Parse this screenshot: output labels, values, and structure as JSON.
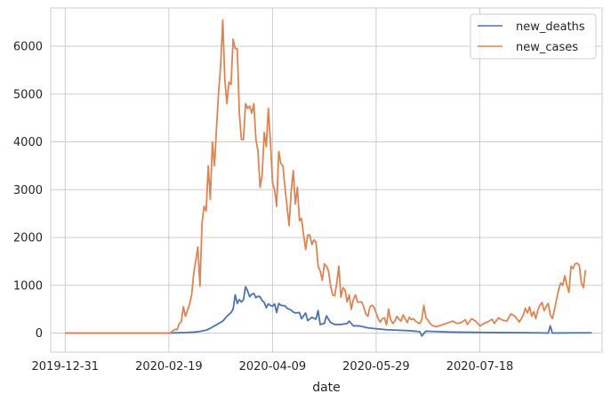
{
  "chart_data": {
    "type": "line",
    "xlabel": "date",
    "ylabel": "",
    "x_tick_labels": [
      "2019-12-31",
      "2020-02-19",
      "2020-04-09",
      "2020-05-29",
      "2020-07-18"
    ],
    "y_tick_labels": [
      "0",
      "1000",
      "2000",
      "3000",
      "4000",
      "5000",
      "6000"
    ],
    "xlim": [
      "2019-12-24",
      "2020-09-15"
    ],
    "ylim": [
      -400,
      6800
    ],
    "grid": true,
    "legend_position": "top-right",
    "colors": {
      "new_deaths": "#4c72b0",
      "new_cases": "#dd8452"
    },
    "series": [
      {
        "name": "new_deaths",
        "points": [
          [
            "2019-12-31",
            0
          ],
          [
            "2020-02-19",
            0
          ],
          [
            "2020-02-27",
            10
          ],
          [
            "2020-03-02",
            20
          ],
          [
            "2020-03-05",
            35
          ],
          [
            "2020-03-08",
            60
          ],
          [
            "2020-03-10",
            100
          ],
          [
            "2020-03-12",
            150
          ],
          [
            "2020-03-14",
            200
          ],
          [
            "2020-03-16",
            250
          ],
          [
            "2020-03-18",
            350
          ],
          [
            "2020-03-20",
            430
          ],
          [
            "2020-03-21",
            500
          ],
          [
            "2020-03-22",
            800
          ],
          [
            "2020-03-23",
            620
          ],
          [
            "2020-03-24",
            700
          ],
          [
            "2020-03-25",
            650
          ],
          [
            "2020-03-26",
            700
          ],
          [
            "2020-03-27",
            970
          ],
          [
            "2020-03-28",
            880
          ],
          [
            "2020-03-29",
            760
          ],
          [
            "2020-03-30",
            810
          ],
          [
            "2020-03-31",
            830
          ],
          [
            "2020-04-01",
            740
          ],
          [
            "2020-04-02",
            770
          ],
          [
            "2020-04-03",
            760
          ],
          [
            "2020-04-04",
            680
          ],
          [
            "2020-04-05",
            640
          ],
          [
            "2020-04-06",
            530
          ],
          [
            "2020-04-07",
            610
          ],
          [
            "2020-04-08",
            580
          ],
          [
            "2020-04-09",
            560
          ],
          [
            "2020-04-10",
            610
          ],
          [
            "2020-04-11",
            430
          ],
          [
            "2020-04-12",
            620
          ],
          [
            "2020-04-13",
            580
          ],
          [
            "2020-04-15",
            570
          ],
          [
            "2020-04-16",
            520
          ],
          [
            "2020-04-18",
            480
          ],
          [
            "2020-04-19",
            440
          ],
          [
            "2020-04-20",
            420
          ],
          [
            "2020-04-22",
            430
          ],
          [
            "2020-04-23",
            300
          ],
          [
            "2020-04-25",
            420
          ],
          [
            "2020-04-26",
            260
          ],
          [
            "2020-04-28",
            330
          ],
          [
            "2020-04-30",
            290
          ],
          [
            "2020-05-01",
            470
          ],
          [
            "2020-05-02",
            180
          ],
          [
            "2020-05-04",
            200
          ],
          [
            "2020-05-05",
            360
          ],
          [
            "2020-05-07",
            220
          ],
          [
            "2020-05-09",
            180
          ],
          [
            "2020-05-12",
            180
          ],
          [
            "2020-05-15",
            200
          ],
          [
            "2020-05-16",
            250
          ],
          [
            "2020-05-18",
            150
          ],
          [
            "2020-05-21",
            150
          ],
          [
            "2020-05-25",
            110
          ],
          [
            "2020-05-29",
            90
          ],
          [
            "2020-06-03",
            70
          ],
          [
            "2020-06-08",
            60
          ],
          [
            "2020-06-14",
            50
          ],
          [
            "2020-06-19",
            30
          ],
          [
            "2020-06-20",
            -60
          ],
          [
            "2020-06-22",
            40
          ],
          [
            "2020-06-28",
            30
          ],
          [
            "2020-07-05",
            20
          ],
          [
            "2020-07-15",
            15
          ],
          [
            "2020-07-25",
            10
          ],
          [
            "2020-08-05",
            8
          ],
          [
            "2020-08-15",
            5
          ],
          [
            "2020-08-20",
            0
          ],
          [
            "2020-08-21",
            150
          ],
          [
            "2020-08-22",
            0
          ],
          [
            "2020-09-01",
            5
          ],
          [
            "2020-09-10",
            5
          ]
        ]
      },
      {
        "name": "new_cases",
        "points": [
          [
            "2019-12-31",
            0
          ],
          [
            "2020-02-19",
            0
          ],
          [
            "2020-02-20",
            10
          ],
          [
            "2020-02-21",
            50
          ],
          [
            "2020-02-22",
            80
          ],
          [
            "2020-02-23",
            70
          ],
          [
            "2020-02-24",
            200
          ],
          [
            "2020-02-25",
            240
          ],
          [
            "2020-02-26",
            550
          ],
          [
            "2020-02-27",
            350
          ],
          [
            "2020-02-28",
            480
          ],
          [
            "2020-02-29",
            600
          ],
          [
            "2020-03-01",
            800
          ],
          [
            "2020-03-02",
            1250
          ],
          [
            "2020-03-03",
            1520
          ],
          [
            "2020-03-04",
            1800
          ],
          [
            "2020-03-05",
            980
          ],
          [
            "2020-03-06",
            2300
          ],
          [
            "2020-03-07",
            2650
          ],
          [
            "2020-03-08",
            2550
          ],
          [
            "2020-03-09",
            3500
          ],
          [
            "2020-03-10",
            2800
          ],
          [
            "2020-03-11",
            4000
          ],
          [
            "2020-03-12",
            3500
          ],
          [
            "2020-03-13",
            4300
          ],
          [
            "2020-03-14",
            5050
          ],
          [
            "2020-03-15",
            5600
          ],
          [
            "2020-03-16",
            6550
          ],
          [
            "2020-03-17",
            5300
          ],
          [
            "2020-03-18",
            4800
          ],
          [
            "2020-03-19",
            5250
          ],
          [
            "2020-03-20",
            5200
          ],
          [
            "2020-03-21",
            6150
          ],
          [
            "2020-03-22",
            5950
          ],
          [
            "2020-03-23",
            5950
          ],
          [
            "2020-03-24",
            4600
          ],
          [
            "2020-03-25",
            4050
          ],
          [
            "2020-03-26",
            4050
          ],
          [
            "2020-03-27",
            4800
          ],
          [
            "2020-03-28",
            4700
          ],
          [
            "2020-03-29",
            4750
          ],
          [
            "2020-03-30",
            4600
          ],
          [
            "2020-03-31",
            4800
          ],
          [
            "2020-04-01",
            4050
          ],
          [
            "2020-04-02",
            3800
          ],
          [
            "2020-04-03",
            3050
          ],
          [
            "2020-04-04",
            3300
          ],
          [
            "2020-04-05",
            4200
          ],
          [
            "2020-04-06",
            3900
          ],
          [
            "2020-04-07",
            4700
          ],
          [
            "2020-04-08",
            4000
          ],
          [
            "2020-04-09",
            3150
          ],
          [
            "2020-04-10",
            3000
          ],
          [
            "2020-04-11",
            2650
          ],
          [
            "2020-04-12",
            3800
          ],
          [
            "2020-04-13",
            3550
          ],
          [
            "2020-04-14",
            3500
          ],
          [
            "2020-04-15",
            3050
          ],
          [
            "2020-04-16",
            2650
          ],
          [
            "2020-04-17",
            2250
          ],
          [
            "2020-04-18",
            2950
          ],
          [
            "2020-04-19",
            3400
          ],
          [
            "2020-04-20",
            2700
          ],
          [
            "2020-04-21",
            3050
          ],
          [
            "2020-04-22",
            2350
          ],
          [
            "2020-04-23",
            2400
          ],
          [
            "2020-04-24",
            2050
          ],
          [
            "2020-04-25",
            1750
          ],
          [
            "2020-04-26",
            2050
          ],
          [
            "2020-04-27",
            2050
          ],
          [
            "2020-04-28",
            1850
          ],
          [
            "2020-04-29",
            1950
          ],
          [
            "2020-04-30",
            1900
          ],
          [
            "2020-05-01",
            1400
          ],
          [
            "2020-05-02",
            1300
          ],
          [
            "2020-05-03",
            1100
          ],
          [
            "2020-05-04",
            1450
          ],
          [
            "2020-05-05",
            1400
          ],
          [
            "2020-05-06",
            1300
          ],
          [
            "2020-05-07",
            1000
          ],
          [
            "2020-05-08",
            800
          ],
          [
            "2020-05-09",
            780
          ],
          [
            "2020-05-10",
            1050
          ],
          [
            "2020-05-11",
            1400
          ],
          [
            "2020-05-12",
            750
          ],
          [
            "2020-05-13",
            950
          ],
          [
            "2020-05-14",
            900
          ],
          [
            "2020-05-15",
            650
          ],
          [
            "2020-05-16",
            800
          ],
          [
            "2020-05-17",
            500
          ],
          [
            "2020-05-18",
            700
          ],
          [
            "2020-05-19",
            800
          ],
          [
            "2020-05-20",
            650
          ],
          [
            "2020-05-21",
            650
          ],
          [
            "2020-05-22",
            650
          ],
          [
            "2020-05-23",
            550
          ],
          [
            "2020-05-24",
            400
          ],
          [
            "2020-05-25",
            350
          ],
          [
            "2020-05-26",
            550
          ],
          [
            "2020-05-27",
            580
          ],
          [
            "2020-05-28",
            540
          ],
          [
            "2020-05-29",
            420
          ],
          [
            "2020-05-30",
            300
          ],
          [
            "2020-05-31",
            230
          ],
          [
            "2020-06-01",
            300
          ],
          [
            "2020-06-02",
            320
          ],
          [
            "2020-06-03",
            170
          ],
          [
            "2020-06-04",
            500
          ],
          [
            "2020-06-05",
            280
          ],
          [
            "2020-06-06",
            200
          ],
          [
            "2020-06-07",
            250
          ],
          [
            "2020-06-08",
            350
          ],
          [
            "2020-06-09",
            290
          ],
          [
            "2020-06-10",
            250
          ],
          [
            "2020-06-11",
            380
          ],
          [
            "2020-06-12",
            300
          ],
          [
            "2020-06-13",
            220
          ],
          [
            "2020-06-14",
            330
          ],
          [
            "2020-06-15",
            280
          ],
          [
            "2020-06-16",
            300
          ],
          [
            "2020-06-17",
            250
          ],
          [
            "2020-06-18",
            220
          ],
          [
            "2020-06-19",
            200
          ],
          [
            "2020-06-20",
            280
          ],
          [
            "2020-06-21",
            580
          ],
          [
            "2020-06-22",
            320
          ],
          [
            "2020-06-23",
            270
          ],
          [
            "2020-06-24",
            200
          ],
          [
            "2020-06-25",
            160
          ],
          [
            "2020-06-27",
            130
          ],
          [
            "2020-06-29",
            160
          ],
          [
            "2020-07-01",
            190
          ],
          [
            "2020-07-03",
            220
          ],
          [
            "2020-07-05",
            250
          ],
          [
            "2020-07-07",
            200
          ],
          [
            "2020-07-09",
            220
          ],
          [
            "2020-07-11",
            280
          ],
          [
            "2020-07-12",
            180
          ],
          [
            "2020-07-14",
            300
          ],
          [
            "2020-07-16",
            250
          ],
          [
            "2020-07-18",
            150
          ],
          [
            "2020-07-20",
            200
          ],
          [
            "2020-07-22",
            240
          ],
          [
            "2020-07-24",
            290
          ],
          [
            "2020-07-25",
            200
          ],
          [
            "2020-07-27",
            320
          ],
          [
            "2020-07-29",
            270
          ],
          [
            "2020-07-31",
            250
          ],
          [
            "2020-08-02",
            400
          ],
          [
            "2020-08-04",
            350
          ],
          [
            "2020-08-06",
            230
          ],
          [
            "2020-08-07",
            300
          ],
          [
            "2020-08-08",
            380
          ],
          [
            "2020-08-09",
            520
          ],
          [
            "2020-08-10",
            420
          ],
          [
            "2020-08-11",
            550
          ],
          [
            "2020-08-12",
            350
          ],
          [
            "2020-08-13",
            450
          ],
          [
            "2020-08-14",
            300
          ],
          [
            "2020-08-15",
            480
          ],
          [
            "2020-08-16",
            580
          ],
          [
            "2020-08-17",
            640
          ],
          [
            "2020-08-18",
            470
          ],
          [
            "2020-08-19",
            550
          ],
          [
            "2020-08-20",
            620
          ],
          [
            "2020-08-21",
            380
          ],
          [
            "2020-08-22",
            300
          ],
          [
            "2020-08-23",
            480
          ],
          [
            "2020-08-24",
            700
          ],
          [
            "2020-08-25",
            900
          ],
          [
            "2020-08-26",
            1050
          ],
          [
            "2020-08-27",
            1000
          ],
          [
            "2020-08-28",
            1200
          ],
          [
            "2020-08-29",
            1000
          ],
          [
            "2020-08-30",
            850
          ],
          [
            "2020-08-31",
            1400
          ],
          [
            "2020-09-01",
            1350
          ],
          [
            "2020-09-02",
            1450
          ],
          [
            "2020-09-03",
            1460
          ],
          [
            "2020-09-04",
            1420
          ],
          [
            "2020-09-05",
            1050
          ],
          [
            "2020-09-06",
            950
          ],
          [
            "2020-09-07",
            1320
          ]
        ]
      }
    ]
  }
}
